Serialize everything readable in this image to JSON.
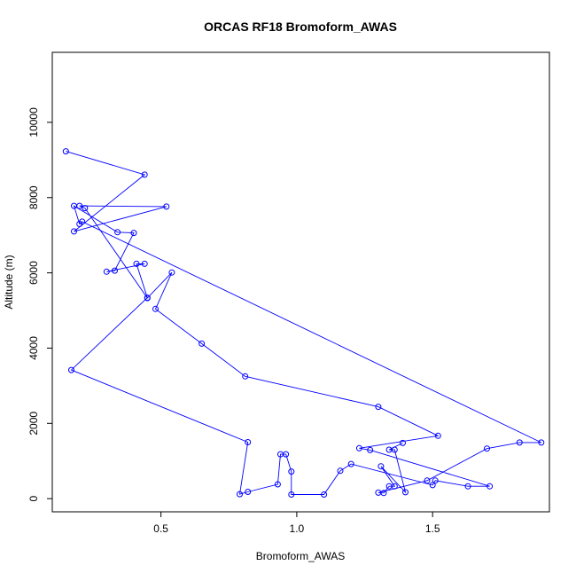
{
  "chart_data": {
    "type": "line",
    "title": "ORCAS RF18 Bromoform_AWAS",
    "xlabel": "Bromoform_AWAS",
    "ylabel": "Altitude (m)",
    "xlim": [
      0.1,
      1.93
    ],
    "ylim": [
      -350,
      11860
    ],
    "x_ticks": [
      0.5,
      1.0,
      1.5
    ],
    "x_tick_labels": [
      "0.5",
      "1.0",
      "1.5"
    ],
    "y_ticks": [
      0,
      2000,
      4000,
      6000,
      8000,
      10000
    ],
    "y_tick_labels": [
      "0",
      "2000",
      "4000",
      "6000",
      "8000",
      "10000"
    ],
    "grid": false,
    "marker": "open-circle",
    "color": "#0000ff",
    "series": [
      {
        "x": [
          0.15,
          0.44,
          0.18,
          0.52,
          0.2,
          0.22,
          0.45,
          0.54,
          0.48,
          0.65,
          0.81,
          1.3,
          1.52,
          1.23,
          1.27,
          1.71,
          1.63,
          1.51,
          1.5,
          1.2,
          1.16,
          1.1,
          0.98,
          0.98,
          0.96,
          0.94,
          0.93,
          0.82,
          0.79,
          0.82,
          0.17,
          0.45,
          0.41,
          0.44,
          0.3,
          0.33,
          0.4,
          0.34,
          0.18,
          0.2,
          0.21,
          1.9,
          1.82,
          1.7,
          1.48,
          1.3,
          1.32,
          1.34,
          1.36,
          1.31,
          1.4,
          1.36,
          1.34,
          1.39
        ],
        "y": [
          9230,
          8610,
          7100,
          7760,
          7780,
          7720,
          5330,
          6010,
          5040,
          4120,
          3250,
          2440,
          1670,
          1340,
          1290,
          330,
          330,
          480,
          360,
          920,
          740,
          110,
          110,
          720,
          1180,
          1180,
          380,
          180,
          120,
          1500,
          3420,
          5340,
          6240,
          6240,
          6030,
          6060,
          7060,
          7080,
          7780,
          7300,
          7360,
          1490,
          1490,
          1330,
          480,
          160,
          150,
          330,
          330,
          860,
          170,
          1300,
          1300,
          1480
        ]
      }
    ]
  }
}
